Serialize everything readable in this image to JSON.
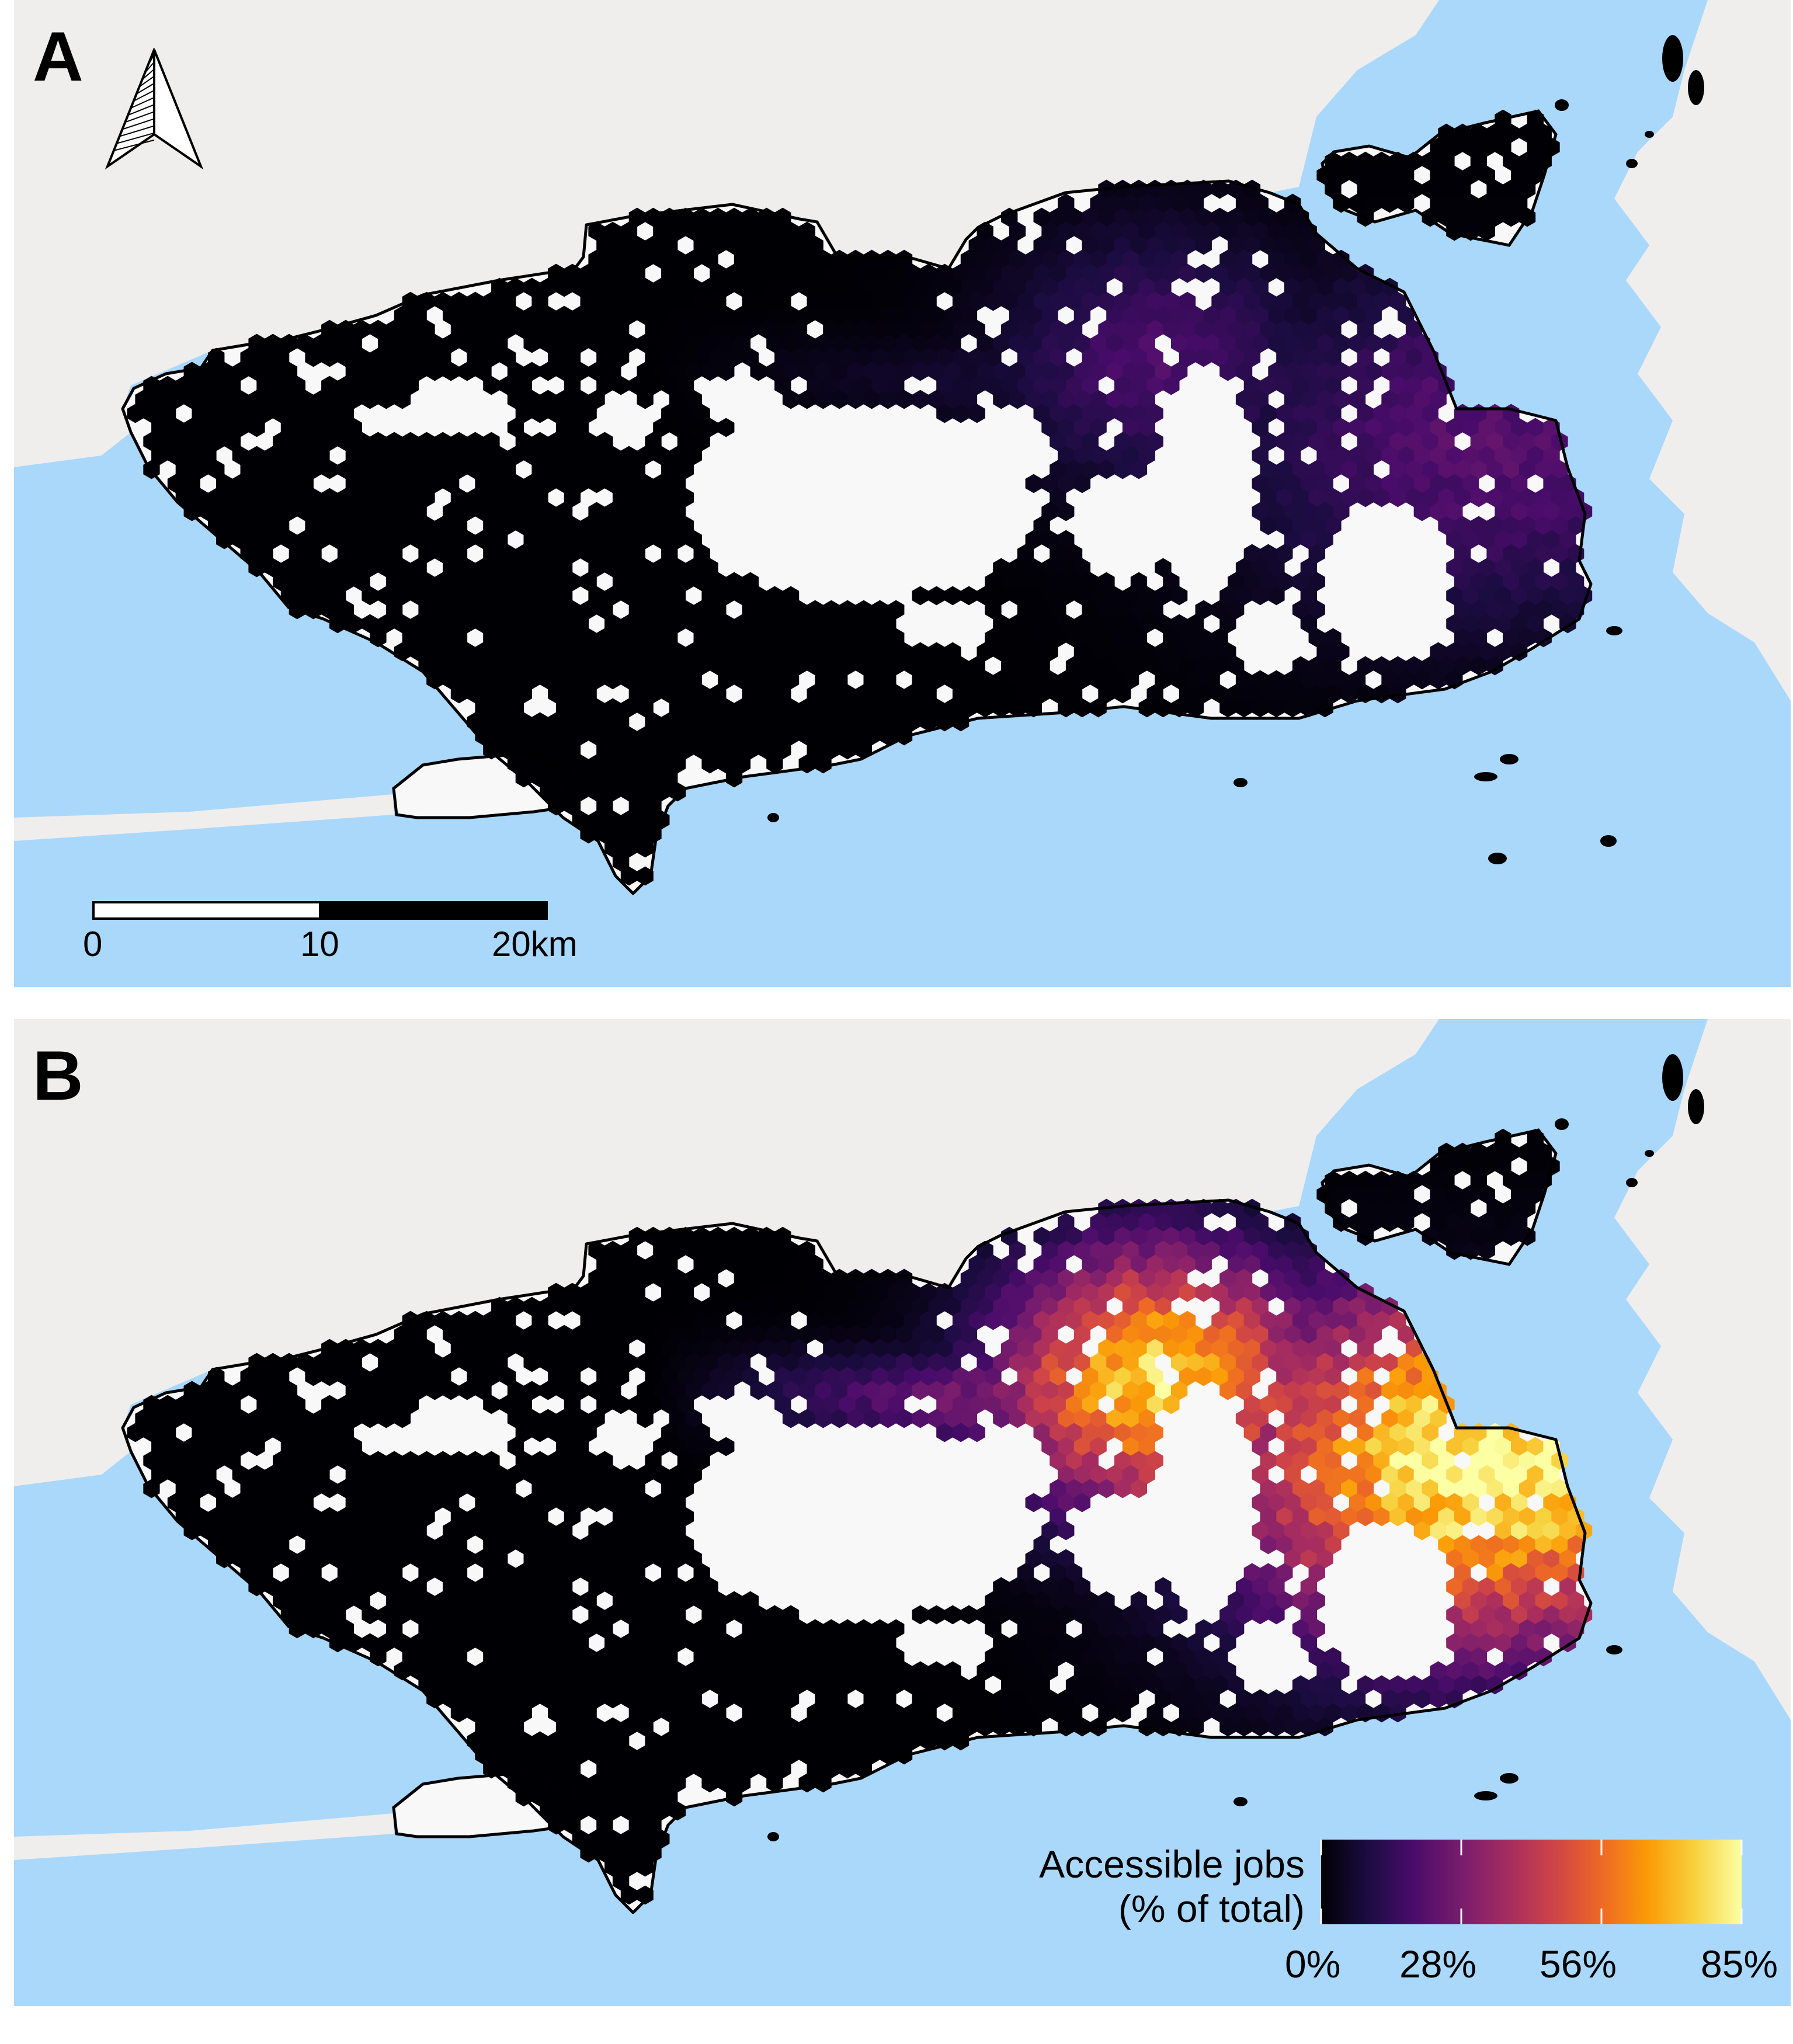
{
  "panels": [
    {
      "label": "A",
      "accessibility_scale": 0.25
    },
    {
      "label": "B",
      "accessibility_scale": 1.0
    }
  ],
  "scale_bar": {
    "labels": [
      "0",
      "10",
      "20km"
    ]
  },
  "legend": {
    "title_line1": "Accessible jobs",
    "title_line2": "(% of total)",
    "ticks": [
      "0%",
      "28%",
      "56%",
      "85%"
    ],
    "colors": [
      "#000004",
      "#1b0c41",
      "#4a0c6b",
      "#781c6d",
      "#a52c60",
      "#cf4446",
      "#ed6925",
      "#fb9b06",
      "#f7d13d",
      "#fcffa4"
    ]
  },
  "colors": {
    "water": "#a9d8fb",
    "land": "#efeeed",
    "city_fill": "#f8f8f8",
    "boundary": "#000000"
  }
}
